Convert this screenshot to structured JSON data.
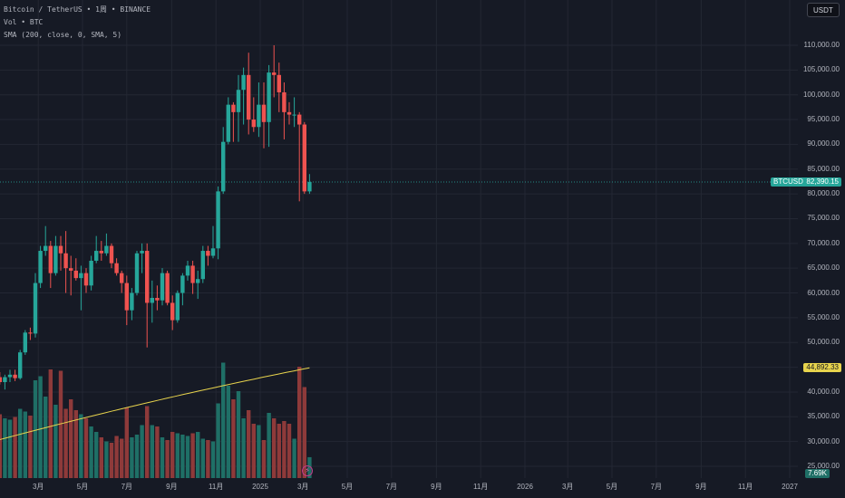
{
  "header": {
    "symbol_line": "Bitcoin / TetherUS • 1周 • BINANCE",
    "volume_line": "Vol • BTC",
    "sma_line": "SMA (200, close, 0, SMA, 5)"
  },
  "toolbar": {
    "currency_label": "USDT"
  },
  "price_label": {
    "symbol": "BTCUSDT",
    "value": "82,390.15"
  },
  "sma_label": {
    "value": "44,892.33"
  },
  "volume_label": {
    "value": "7.69K"
  },
  "event_icon": "lightning-icon",
  "colors": {
    "background": "#161a25",
    "up": "#26a69a",
    "down": "#ef5350",
    "volume_up": "#1f6f66",
    "volume_down": "#8e3a3a",
    "sma": "#e8d44d",
    "grid": "#232733",
    "price_line": "#26a69a"
  },
  "chart_data": {
    "type": "candlestick",
    "title": "Bitcoin / TetherUS • 1周 • BINANCE",
    "interval": "1周",
    "grid": true,
    "y_axis": {
      "position": "right",
      "ylim": [
        24000,
        115000
      ],
      "tick_values": [
        25000,
        30000,
        35000,
        40000,
        45000,
        50000,
        55000,
        60000,
        65000,
        70000,
        75000,
        80000,
        85000,
        90000,
        95000,
        100000,
        105000,
        110000
      ],
      "tick_labels": [
        "25,000.00",
        "30,000.00",
        "35,000.00",
        "40,000.00",
        "45,000.00",
        "50,000.00",
        "55,000.00",
        "60,000.00",
        "65,000.00",
        "70,000.00",
        "75,000.00",
        "80,000.00",
        "85,000.00",
        "90,000.00",
        "95,000.00",
        "100,000.00",
        "105,000.00",
        "110,000.00"
      ]
    },
    "x_axis": {
      "tick_labels": [
        "3月",
        "5月",
        "7月",
        "9月",
        "11月",
        "2025",
        "3月",
        "5月",
        "7月",
        "9月",
        "11月",
        "2026",
        "3月",
        "5月",
        "7月",
        "9月",
        "11月",
        "2027"
      ],
      "tick_dates": [
        "2024-03-01",
        "2024-05-01",
        "2024-07-01",
        "2024-09-01",
        "2024-11-01",
        "2025-01-01",
        "2025-03-01",
        "2025-05-01",
        "2025-07-01",
        "2025-09-01",
        "2025-11-01",
        "2026-01-01",
        "2026-03-01",
        "2026-05-01",
        "2026-07-01",
        "2026-09-01",
        "2026-11-01",
        "2027-01-01"
      ]
    },
    "series": [
      {
        "name": "Bitcoin / TetherUS",
        "type": "candlestick",
        "columns": [
          "date",
          "open",
          "high",
          "low",
          "close"
        ],
        "values": [
          [
            "2024-01-08",
            43000,
            44000,
            41500,
            42000
          ],
          [
            "2024-01-15",
            42000,
            43500,
            40500,
            43000
          ],
          [
            "2024-01-22",
            43000,
            44500,
            42000,
            43500
          ],
          [
            "2024-01-29",
            43500,
            44500,
            42200,
            42800
          ],
          [
            "2024-02-05",
            42800,
            48500,
            42500,
            48000
          ],
          [
            "2024-02-12",
            48000,
            52500,
            47500,
            52000
          ],
          [
            "2024-02-19",
            52000,
            53000,
            50500,
            51800
          ],
          [
            "2024-02-26",
            51800,
            64000,
            51000,
            62000
          ],
          [
            "2024-03-04",
            62000,
            69500,
            61000,
            68500
          ],
          [
            "2024-03-11",
            68500,
            73500,
            67500,
            69500
          ],
          [
            "2024-03-18",
            69500,
            70500,
            61000,
            64000
          ],
          [
            "2024-03-25",
            64000,
            71500,
            63500,
            69500
          ],
          [
            "2024-04-01",
            69500,
            71500,
            64500,
            68000
          ],
          [
            "2024-04-08",
            68000,
            72500,
            60000,
            65000
          ],
          [
            "2024-04-15",
            65000,
            67500,
            59500,
            64500
          ],
          [
            "2024-04-22",
            64500,
            67000,
            62500,
            63000
          ],
          [
            "2024-04-29",
            63000,
            65500,
            56500,
            64000
          ],
          [
            "2024-05-06",
            64000,
            65000,
            60000,
            61500
          ],
          [
            "2024-05-13",
            61500,
            67500,
            60500,
            66500
          ],
          [
            "2024-05-20",
            66500,
            71500,
            66000,
            68500
          ],
          [
            "2024-05-27",
            68500,
            70500,
            66500,
            68000
          ],
          [
            "2024-06-03",
            68000,
            72000,
            67500,
            69500
          ],
          [
            "2024-06-10",
            69500,
            70000,
            65000,
            66000
          ],
          [
            "2024-06-17",
            66000,
            67000,
            63500,
            64000
          ],
          [
            "2024-06-24",
            64000,
            64500,
            60000,
            62000
          ],
          [
            "2024-07-01",
            62000,
            63500,
            53500,
            56500
          ],
          [
            "2024-07-08",
            56500,
            61000,
            54500,
            60000
          ],
          [
            "2024-07-15",
            60000,
            68500,
            59500,
            68000
          ],
          [
            "2024-07-22",
            68000,
            70000,
            64000,
            68500
          ],
          [
            "2024-07-29",
            68500,
            70000,
            49000,
            58000
          ],
          [
            "2024-08-05",
            58000,
            62500,
            54000,
            59000
          ],
          [
            "2024-08-12",
            59000,
            61500,
            56500,
            58500
          ],
          [
            "2024-08-19",
            58500,
            65000,
            57500,
            64000
          ],
          [
            "2024-08-26",
            64000,
            64500,
            57500,
            58000
          ],
          [
            "2024-09-02",
            58000,
            59500,
            52500,
            54500
          ],
          [
            "2024-09-09",
            54500,
            60500,
            54000,
            60000
          ],
          [
            "2024-09-16",
            60000,
            64000,
            57500,
            63500
          ],
          [
            "2024-09-23",
            63500,
            66500,
            62500,
            65500
          ],
          [
            "2024-09-30",
            65500,
            66500,
            59800,
            62000
          ],
          [
            "2024-10-07",
            62000,
            64500,
            58800,
            62800
          ],
          [
            "2024-10-14",
            62800,
            69500,
            62000,
            68500
          ],
          [
            "2024-10-21",
            68500,
            69500,
            65500,
            67500
          ],
          [
            "2024-10-28",
            67500,
            73500,
            67000,
            69000
          ],
          [
            "2024-11-04",
            69000,
            81500,
            66800,
            80500
          ],
          [
            "2024-11-11",
            80500,
            93500,
            80000,
            90500
          ],
          [
            "2024-11-18",
            90500,
            99500,
            90000,
            98000
          ],
          [
            "2024-11-25",
            98000,
            98500,
            90500,
            96500
          ],
          [
            "2024-12-02",
            96500,
            104000,
            90500,
            101000
          ],
          [
            "2024-12-09",
            101000,
            105500,
            94000,
            104000
          ],
          [
            "2024-12-16",
            104000,
            108500,
            92000,
            95000
          ],
          [
            "2024-12-23",
            95000,
            99500,
            92500,
            93500
          ],
          [
            "2024-12-30",
            93500,
            102500,
            91500,
            98000
          ],
          [
            "2025-01-06",
            98000,
            102500,
            89200,
            94500
          ],
          [
            "2025-01-13",
            94500,
            106000,
            89500,
            104500
          ],
          [
            "2025-01-20",
            104500,
            110000,
            99500,
            104000
          ],
          [
            "2025-01-27",
            104000,
            106500,
            96500,
            100500
          ],
          [
            "2025-02-03",
            100500,
            102500,
            91000,
            96500
          ],
          [
            "2025-02-10",
            96500,
            98500,
            94000,
            96000
          ],
          [
            "2025-02-17",
            96000,
            99500,
            93500,
            96000
          ],
          [
            "2025-02-24",
            96000,
            96500,
            78500,
            94000
          ],
          [
            "2025-03-03",
            94000,
            94500,
            80000,
            80500
          ],
          [
            "2025-03-10",
            80500,
            84000,
            80000,
            82390.15
          ]
        ]
      },
      {
        "name": "Vol",
        "type": "volume",
        "values": [
          23.5,
          22,
          21.5,
          22.5,
          25.5,
          24.5,
          23,
          36,
          37.5,
          30,
          40,
          27,
          39.5,
          25.5,
          29,
          25,
          23.5,
          22,
          19,
          17,
          15,
          13.5,
          13,
          15.5,
          14.5,
          26,
          15,
          16,
          19.5,
          26.5,
          19.5,
          19,
          15,
          14,
          17,
          16.5,
          16,
          15.5,
          16.5,
          17,
          14.5,
          14,
          13.5,
          27.5,
          42.5,
          34,
          29,
          32,
          22,
          25,
          20,
          19.5,
          14,
          24,
          22,
          20,
          21,
          20,
          14.5,
          41,
          33.5,
          7.69
        ],
        "current_label": "7.69K"
      },
      {
        "name": "SMA (200, close, 0, SMA, 5)",
        "type": "line",
        "start": 30000,
        "end": 44892.33
      }
    ],
    "last_price": 82390.15,
    "last_price_label": "BTCUSDT"
  }
}
